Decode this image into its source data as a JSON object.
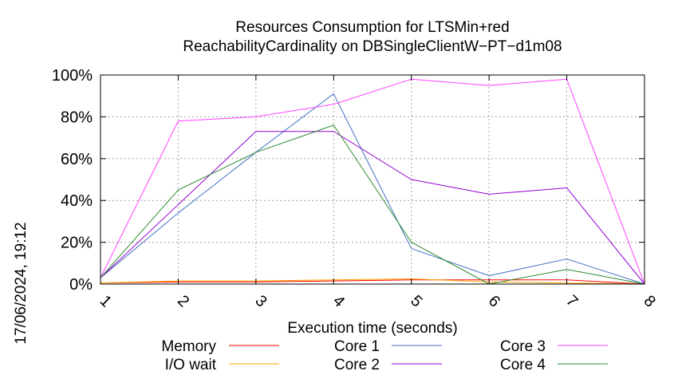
{
  "chart_data": {
    "type": "line",
    "title_lines": [
      "Resources Consumption for LTSMin+red",
      "ReachabilityCardinality on DBSingleClientW−PT−d1m08"
    ],
    "xlabel": "Execution time (seconds)",
    "ylabel": "",
    "timestamp": "17/06/2024, 19:12",
    "x": [
      1,
      2,
      3,
      4,
      5,
      6,
      7,
      8
    ],
    "x_tick_labels": [
      "1",
      "2",
      "3",
      "4",
      "5",
      "6",
      "7",
      "8"
    ],
    "y_tick_labels": [
      "0%",
      "20%",
      "40%",
      "60%",
      "80%",
      "100%"
    ],
    "xlim": [
      1,
      8
    ],
    "ylim": [
      0,
      100
    ],
    "grid": true,
    "legend_position": "bottom",
    "series": [
      {
        "name": "Memory",
        "color": "#ff0000",
        "values": [
          0.5,
          1,
          1,
          1.5,
          2,
          2,
          2,
          0
        ]
      },
      {
        "name": "I/O wait",
        "color": "#ffa500",
        "values": [
          0.5,
          1.5,
          1.5,
          2,
          2.5,
          1,
          0.5,
          0
        ]
      },
      {
        "name": "Core 1",
        "color": "#4472c4",
        "values": [
          3,
          34,
          63,
          91,
          17,
          4,
          12,
          0
        ]
      },
      {
        "name": "Core 2",
        "color": "#9400d3",
        "values": [
          3,
          38,
          73,
          73,
          50,
          43,
          46,
          0
        ]
      },
      {
        "name": "Core 3",
        "color": "#ff40ff",
        "values": [
          3,
          78,
          80,
          86,
          98,
          95,
          98,
          0
        ]
      },
      {
        "name": "Core 4",
        "color": "#2e8b2e",
        "values": [
          3,
          45,
          63,
          76,
          20,
          0,
          7,
          0
        ]
      }
    ]
  }
}
